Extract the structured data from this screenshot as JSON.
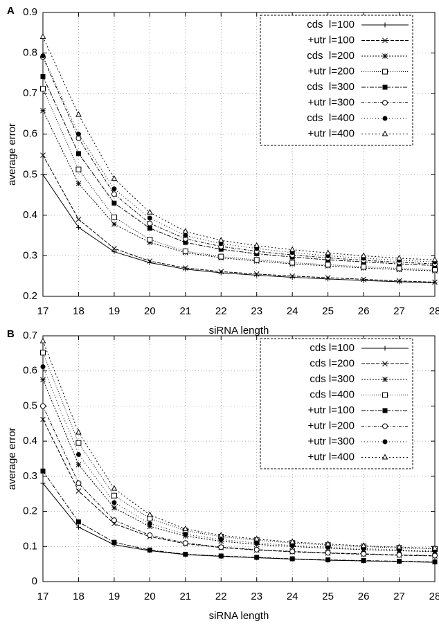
{
  "chart_data": [
    {
      "type": "line",
      "panel": "A",
      "x_label": "siRNA length",
      "y_label": "average error",
      "x": [
        17,
        18,
        19,
        20,
        21,
        22,
        23,
        24,
        25,
        26,
        27,
        28
      ],
      "xlim": [
        17,
        28
      ],
      "xticks": [
        17,
        18,
        19,
        20,
        21,
        22,
        23,
        24,
        25,
        26,
        27,
        28
      ],
      "ylim": [
        0.2,
        0.9
      ],
      "yticks": [
        0.2,
        0.3,
        0.4,
        0.5,
        0.6,
        0.7,
        0.8,
        0.9
      ],
      "grid": true,
      "legend": "top-right",
      "series": [
        {
          "name": "cds  l=100",
          "color": "#000000",
          "marker": "plus",
          "dash": "none",
          "values": [
            0.5,
            0.37,
            0.31,
            0.283,
            0.267,
            0.258,
            0.252,
            0.247,
            0.243,
            0.239,
            0.236,
            0.233
          ]
        },
        {
          "name": "+utr l=100",
          "color": "#000000",
          "marker": "cross",
          "dash": "5,2",
          "values": [
            0.548,
            0.39,
            0.318,
            0.287,
            0.27,
            0.261,
            0.255,
            0.25,
            0.246,
            0.242,
            0.238,
            0.235
          ]
        },
        {
          "name": "cds  l=200",
          "color": "#000000",
          "marker": "star",
          "dash": "2,2",
          "values": [
            0.658,
            0.478,
            0.378,
            0.333,
            0.308,
            0.295,
            0.287,
            0.28,
            0.275,
            0.27,
            0.266,
            0.263
          ]
        },
        {
          "name": "+utr l=200",
          "color": "#000000",
          "marker": "square",
          "dash": "1,2",
          "values": [
            0.712,
            0.513,
            0.395,
            0.34,
            0.311,
            0.298,
            0.29,
            0.283,
            0.278,
            0.273,
            0.269,
            0.266
          ]
        },
        {
          "name": "cds  l=300",
          "color": "#000000",
          "marker": "filled-square",
          "dash": "6,2,2,2",
          "values": [
            0.742,
            0.552,
            0.43,
            0.368,
            0.333,
            0.316,
            0.305,
            0.297,
            0.29,
            0.285,
            0.28,
            0.276
          ]
        },
        {
          "name": "+utr l=300",
          "color": "#000000",
          "marker": "circle",
          "dash": "4,2,1,2",
          "values": [
            0.79,
            0.59,
            0.452,
            0.38,
            0.342,
            0.323,
            0.311,
            0.302,
            0.295,
            0.289,
            0.284,
            0.28
          ]
        },
        {
          "name": "cds  l=400",
          "color": "#000000",
          "marker": "filled-circle",
          "dash": "1,3",
          "values": [
            0.793,
            0.6,
            0.465,
            0.393,
            0.35,
            0.33,
            0.318,
            0.308,
            0.3,
            0.294,
            0.289,
            0.285
          ]
        },
        {
          "name": "+utr l=400",
          "color": "#000000",
          "marker": "triangle",
          "dash": "2,3",
          "values": [
            0.84,
            0.648,
            0.49,
            0.407,
            0.36,
            0.338,
            0.325,
            0.315,
            0.307,
            0.3,
            0.294,
            0.29
          ]
        }
      ]
    },
    {
      "type": "line",
      "panel": "B",
      "x_label": "siRNA length",
      "y_label": "average error",
      "x": [
        17,
        18,
        19,
        20,
        21,
        22,
        23,
        24,
        25,
        26,
        27,
        28
      ],
      "xlim": [
        17,
        28
      ],
      "xticks": [
        17,
        18,
        19,
        20,
        21,
        22,
        23,
        24,
        25,
        26,
        27,
        28
      ],
      "ylim": [
        0,
        0.7
      ],
      "yticks": [
        0,
        0.1,
        0.2,
        0.3,
        0.4,
        0.5,
        0.6,
        0.7
      ],
      "grid": true,
      "legend": "top-right",
      "series": [
        {
          "name": "cds l=100",
          "color": "#000000",
          "marker": "plus",
          "dash": "none",
          "values": [
            0.28,
            0.155,
            0.105,
            0.088,
            0.077,
            0.072,
            0.068,
            0.064,
            0.061,
            0.059,
            0.057,
            0.055
          ]
        },
        {
          "name": "cds l=200",
          "color": "#000000",
          "marker": "cross",
          "dash": "5,2",
          "values": [
            0.462,
            0.258,
            0.165,
            0.128,
            0.108,
            0.097,
            0.09,
            0.085,
            0.081,
            0.078,
            0.075,
            0.073
          ]
        },
        {
          "name": "cds l=300",
          "color": "#000000",
          "marker": "star",
          "dash": "2,2",
          "values": [
            0.575,
            0.333,
            0.21,
            0.157,
            0.13,
            0.115,
            0.106,
            0.1,
            0.095,
            0.091,
            0.088,
            0.085
          ]
        },
        {
          "name": "cds l=400",
          "color": "#000000",
          "marker": "square",
          "dash": "1,2",
          "values": [
            0.652,
            0.395,
            0.245,
            0.18,
            0.145,
            0.128,
            0.118,
            0.11,
            0.104,
            0.1,
            0.096,
            0.093
          ]
        },
        {
          "name": "+utr l=100",
          "color": "#000000",
          "marker": "filled-square",
          "dash": "6,2,2,2",
          "values": [
            0.315,
            0.17,
            0.112,
            0.09,
            0.078,
            0.073,
            0.069,
            0.065,
            0.062,
            0.06,
            0.058,
            0.056
          ]
        },
        {
          "name": "+utr l=200",
          "color": "#000000",
          "marker": "circle",
          "dash": "4,2,1,2",
          "values": [
            0.5,
            0.28,
            0.175,
            0.132,
            0.11,
            0.098,
            0.091,
            0.086,
            0.082,
            0.079,
            0.076,
            0.074
          ]
        },
        {
          "name": "+utr l=300",
          "color": "#000000",
          "marker": "filled-circle",
          "dash": "1,3",
          "values": [
            0.612,
            0.362,
            0.225,
            0.165,
            0.135,
            0.12,
            0.11,
            0.103,
            0.098,
            0.094,
            0.09,
            0.087
          ]
        },
        {
          "name": "+utr l=400",
          "color": "#000000",
          "marker": "triangle",
          "dash": "2,3",
          "values": [
            0.685,
            0.425,
            0.265,
            0.19,
            0.15,
            0.132,
            0.121,
            0.113,
            0.107,
            0.102,
            0.098,
            0.095
          ]
        }
      ]
    }
  ]
}
